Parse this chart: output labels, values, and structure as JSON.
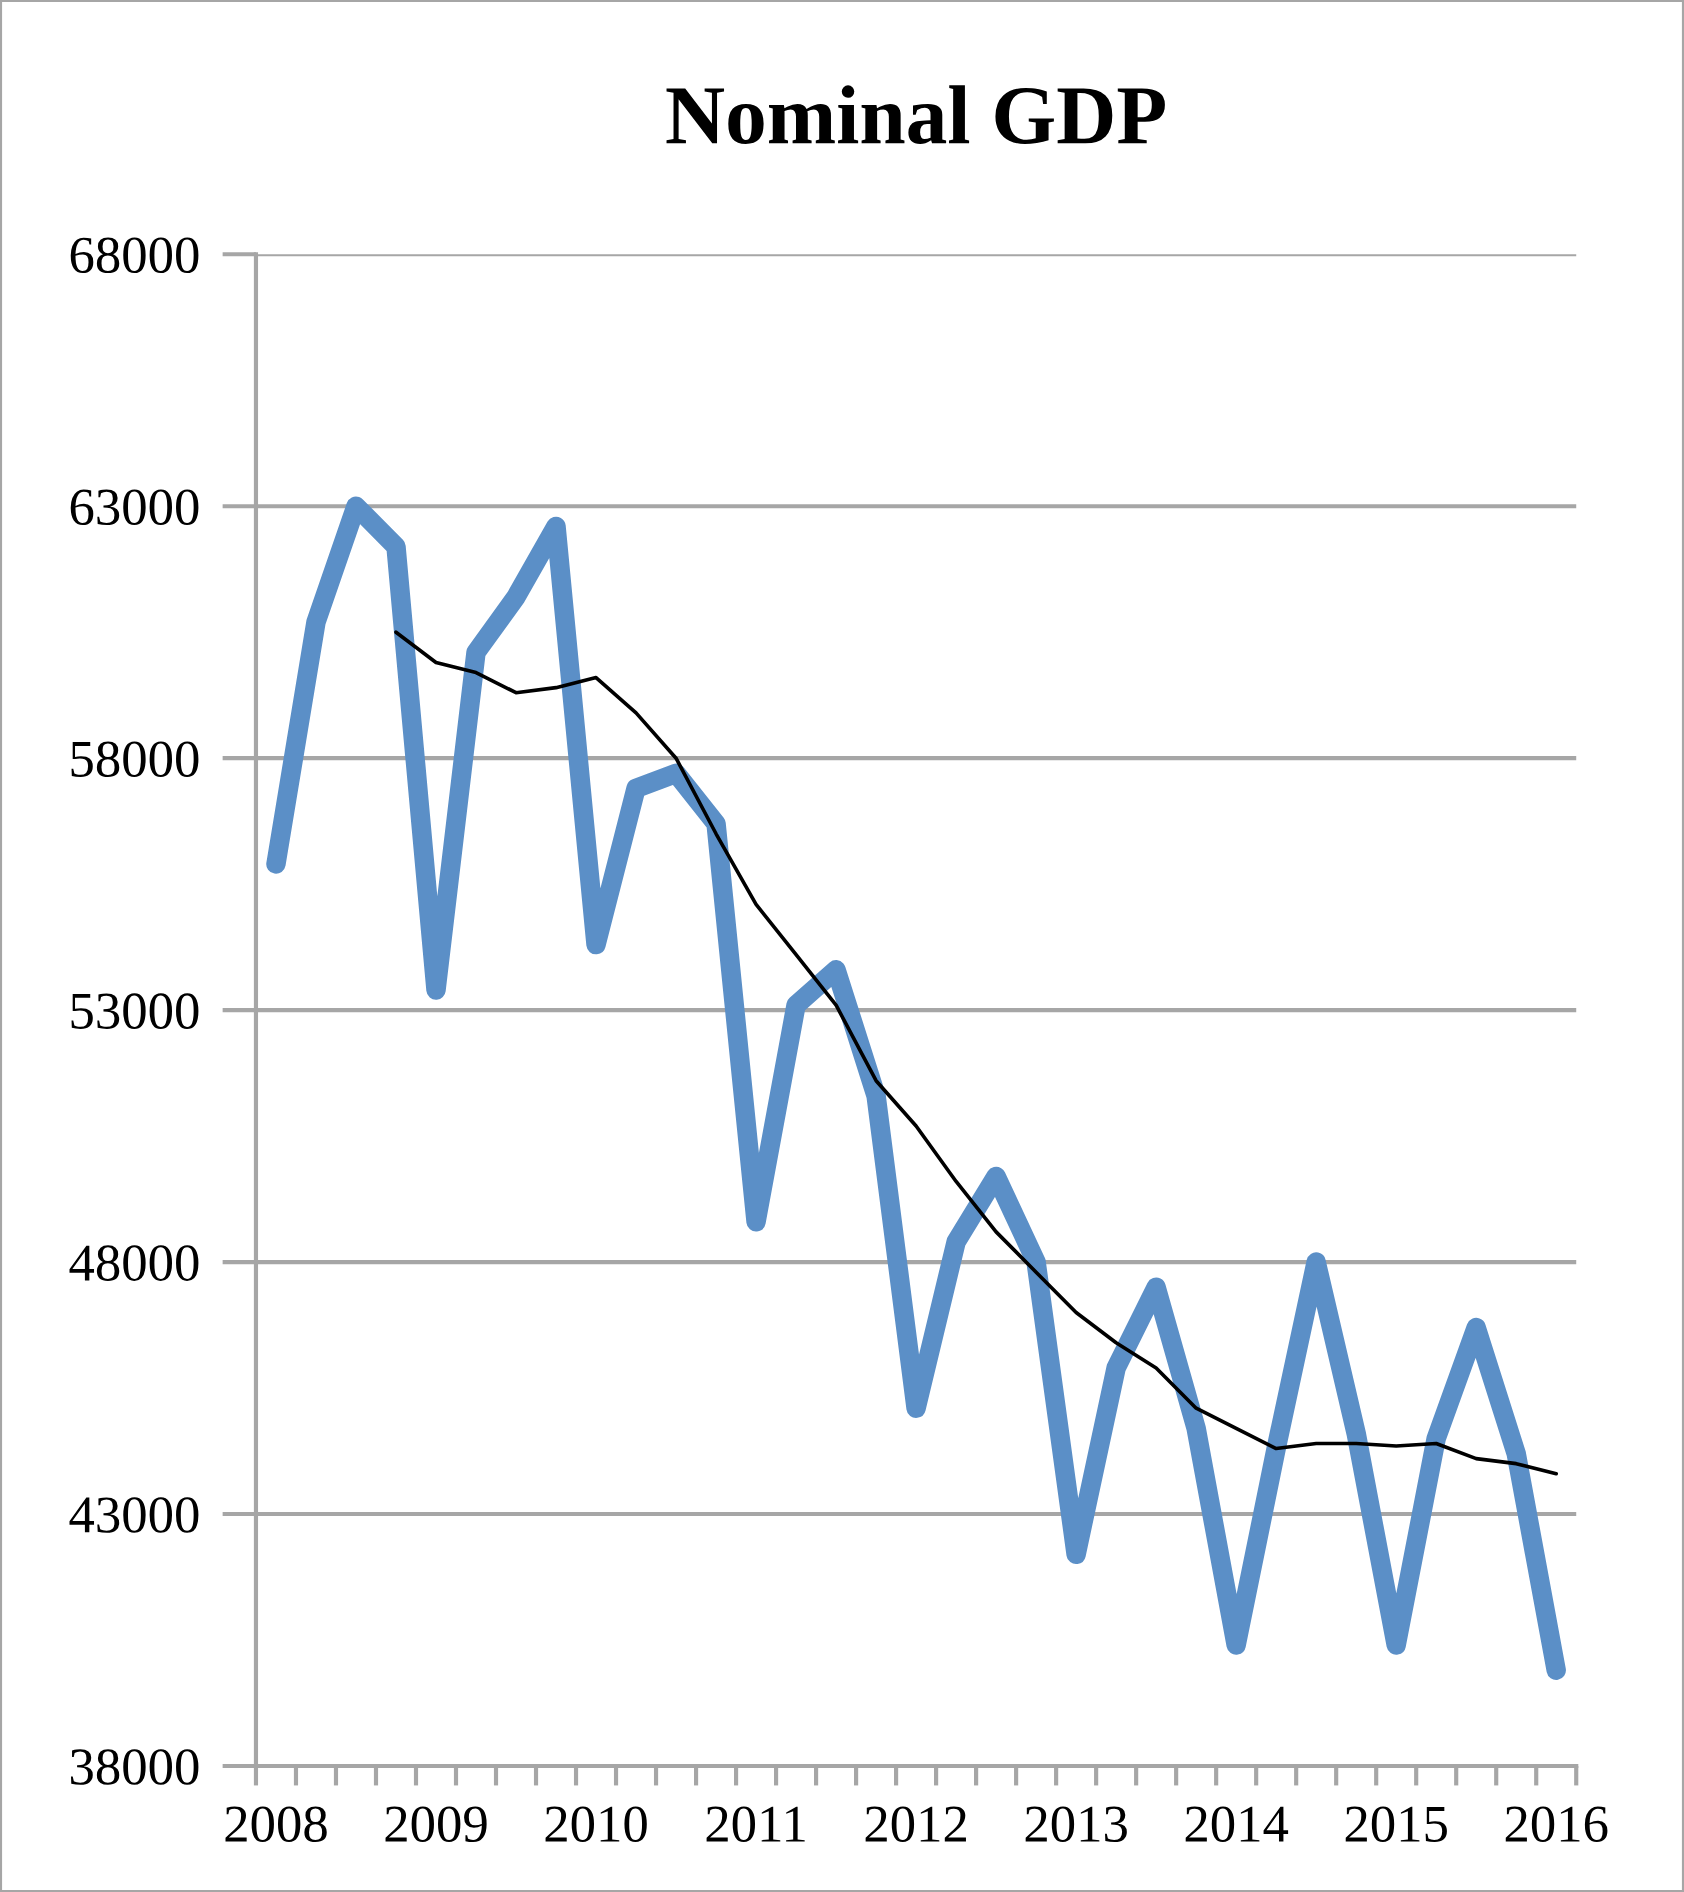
{
  "chart_data": {
    "type": "line",
    "title": "Nominal GDP",
    "categories": [
      "2008",
      null,
      null,
      null,
      "2009",
      null,
      null,
      null,
      "2010",
      null,
      null,
      null,
      "2011",
      null,
      null,
      null,
      "2012",
      null,
      null,
      null,
      "2013",
      null,
      null,
      null,
      "2014",
      null,
      null,
      null,
      "2015",
      null,
      null,
      null,
      "2016"
    ],
    "series": [
      {
        "color": "#5b8fc7",
        "values": [
          55900,
          60700,
          63000,
          62200,
          53400,
          60100,
          61200,
          62600,
          54300,
          57400,
          57700,
          56700,
          48800,
          53100,
          53800,
          51300,
          45100,
          48400,
          49700,
          48000,
          42200,
          45900,
          47500,
          44700,
          40400,
          44300,
          48000,
          44600,
          40400,
          44500,
          46700,
          44200,
          39900
        ]
      },
      {
        "color": "#000000",
        "values": [
          null,
          null,
          null,
          60500,
          59900,
          59700,
          59300,
          59400,
          59600,
          58900,
          58000,
          56500,
          55100,
          54100,
          53100,
          51600,
          50700,
          49600,
          48600,
          47800,
          47000,
          46400,
          45900,
          45100,
          44700,
          44300,
          44400,
          44400,
          44350,
          44400,
          44100,
          44000,
          43800
        ]
      }
    ],
    "ylim": [
      38000,
      68000
    ],
    "yticks": [
      38000,
      43000,
      48000,
      53000,
      58000,
      63000,
      68000
    ],
    "grid": "y",
    "marker": "none",
    "line_style": "solid"
  }
}
